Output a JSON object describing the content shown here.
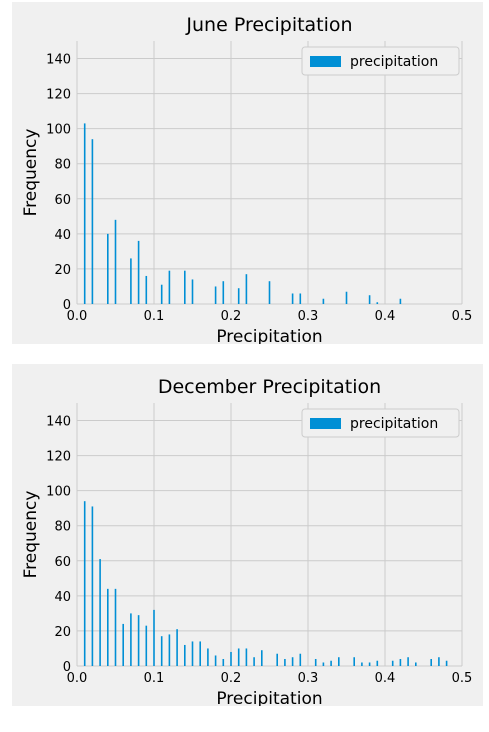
{
  "chart_data": [
    {
      "type": "bar",
      "title": "June Precipitation",
      "xlabel": "Precipitation",
      "ylabel": "Frequency",
      "xlim": [
        0.0,
        0.5
      ],
      "ylim": [
        0,
        150
      ],
      "x_ticks": [
        "0.0",
        "0.1",
        "0.2",
        "0.3",
        "0.4",
        "0.5"
      ],
      "y_ticks": [
        "0",
        "20",
        "40",
        "60",
        "80",
        "100",
        "120",
        "140"
      ],
      "grid": true,
      "legend_position": "top-right",
      "series": [
        {
          "name": "precipitation",
          "color": "#008fd5",
          "x": [
            0.01,
            0.02,
            0.04,
            0.05,
            0.07,
            0.08,
            0.09,
            0.11,
            0.12,
            0.14,
            0.15,
            0.18,
            0.19,
            0.21,
            0.22,
            0.25,
            0.28,
            0.29,
            0.32,
            0.35,
            0.38,
            0.39,
            0.42
          ],
          "values": [
            103,
            94,
            40,
            48,
            26,
            36,
            16,
            11,
            19,
            19,
            14,
            10,
            13,
            9,
            17,
            13,
            6,
            6,
            3,
            7,
            5,
            1,
            3
          ]
        }
      ]
    },
    {
      "type": "bar",
      "title": "December Precipitation",
      "xlabel": "Precipitation",
      "ylabel": "Frequency",
      "xlim": [
        0.0,
        0.5
      ],
      "ylim": [
        0,
        150
      ],
      "x_ticks": [
        "0.0",
        "0.1",
        "0.2",
        "0.3",
        "0.4",
        "0.5"
      ],
      "y_ticks": [
        "0",
        "20",
        "40",
        "60",
        "80",
        "100",
        "120",
        "140"
      ],
      "grid": true,
      "legend_position": "top-right",
      "series": [
        {
          "name": "precipitation",
          "color": "#008fd5",
          "x": [
            0.01,
            0.02,
            0.03,
            0.04,
            0.05,
            0.06,
            0.07,
            0.08,
            0.09,
            0.1,
            0.11,
            0.12,
            0.13,
            0.14,
            0.15,
            0.16,
            0.17,
            0.18,
            0.19,
            0.2,
            0.21,
            0.22,
            0.23,
            0.24,
            0.26,
            0.27,
            0.28,
            0.29,
            0.31,
            0.32,
            0.33,
            0.34,
            0.36,
            0.37,
            0.38,
            0.39,
            0.41,
            0.42,
            0.43,
            0.44,
            0.46,
            0.47,
            0.48
          ],
          "values": [
            94,
            91,
            61,
            44,
            44,
            24,
            30,
            29,
            23,
            32,
            17,
            18,
            21,
            12,
            14,
            14,
            10,
            6,
            4,
            8,
            10,
            10,
            5,
            9,
            7,
            4,
            5,
            7,
            4,
            2,
            3,
            5,
            5,
            2,
            2,
            3,
            3,
            4,
            5,
            2,
            4,
            5,
            3
          ]
        }
      ]
    }
  ]
}
